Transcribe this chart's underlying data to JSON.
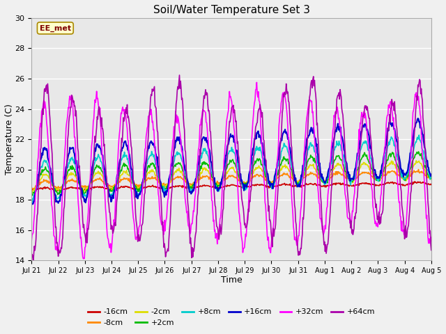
{
  "title": "Soil/Water Temperature Set 3",
  "xlabel": "Time",
  "ylabel": "Temperature (C)",
  "ylim": [
    14,
    30
  ],
  "yticks": [
    14,
    16,
    18,
    20,
    22,
    24,
    26,
    28,
    30
  ],
  "annotation": "EE_met",
  "fig_bg": "#f0f0f0",
  "plot_bg": "#e8e8e8",
  "series_colors": {
    "-16cm": "#cc0000",
    "-8cm": "#ff8800",
    "-2cm": "#dddd00",
    "+2cm": "#00bb00",
    "+8cm": "#00cccc",
    "+16cm": "#0000cc",
    "+32cm": "#ff00ff",
    "+64cm": "#aa00aa"
  },
  "num_days": 15,
  "ppd": 48,
  "seed": 0
}
